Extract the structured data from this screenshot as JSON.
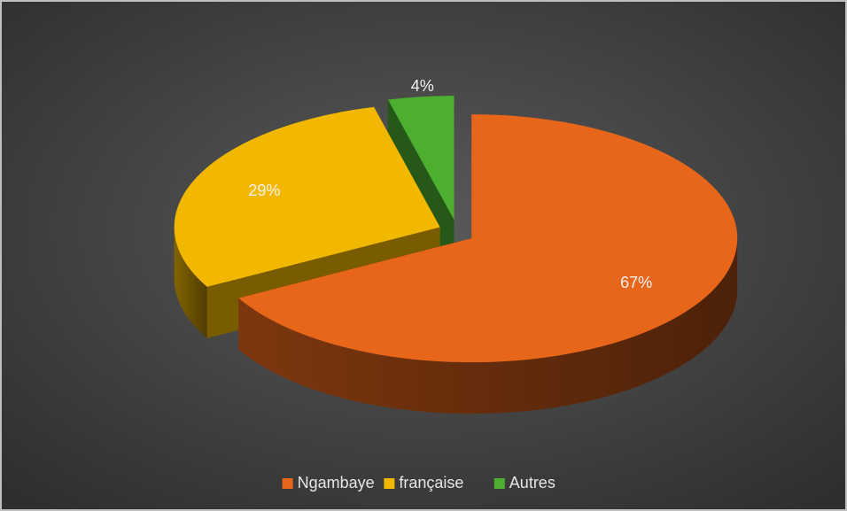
{
  "chart_data": {
    "type": "pie",
    "categories": [
      "Ngambaye",
      "française",
      "Autres"
    ],
    "values": [
      67,
      29,
      4
    ],
    "value_labels": [
      "67%",
      "29%",
      "4%"
    ],
    "colors": [
      "#e8661a",
      "#f2b800",
      "#4caf2f"
    ],
    "legend": "bottom"
  }
}
